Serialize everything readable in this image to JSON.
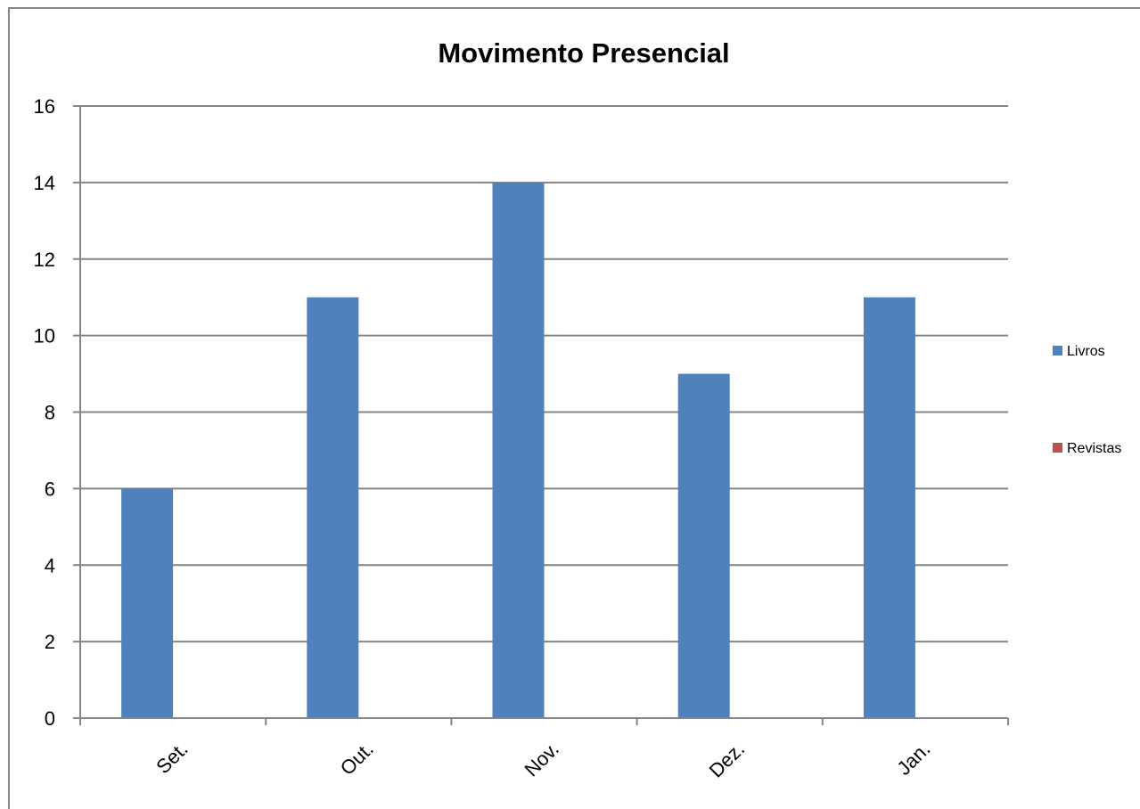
{
  "chart_data": {
    "type": "bar",
    "title": "Movimento Presencial",
    "categories": [
      "Set.",
      "Out.",
      "Nov.",
      "Dez.",
      "Jan."
    ],
    "series": [
      {
        "name": "Livros",
        "values": [
          6,
          11,
          14,
          9,
          11
        ],
        "color": "#4F81BD"
      },
      {
        "name": "Revistas",
        "values": [
          0,
          0,
          0,
          0,
          0
        ],
        "color": "#C0504D"
      }
    ],
    "ylim": [
      0,
      16
    ],
    "yticks": [
      "0",
      "2",
      "4",
      "6",
      "8",
      "10",
      "12",
      "14",
      "16"
    ],
    "grid": true,
    "legend_position": "right"
  }
}
